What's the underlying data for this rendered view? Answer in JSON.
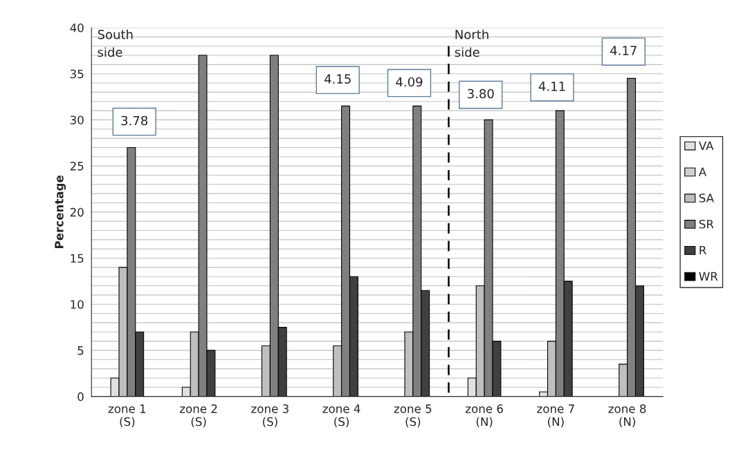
{
  "chart_data": {
    "type": "bar",
    "ylabel": "Percentage",
    "categories": [
      "zone 1\n(S)",
      "zone 2\n(S)",
      "zone 3\n(S)",
      "zone 4\n(S)",
      "zone 5\n(S)",
      "zone 6\n(N)",
      "zone 7\n(N)",
      "zone 8\n(N)"
    ],
    "series": [
      {
        "name": "VA",
        "color": "#e0e0e0",
        "values": [
          2,
          1,
          null,
          null,
          null,
          2,
          0.5,
          null
        ]
      },
      {
        "name": "A",
        "color": "#d0d0d0",
        "values": [
          null,
          null,
          null,
          null,
          null,
          null,
          null,
          null
        ]
      },
      {
        "name": "SA",
        "color": "#bfbfbf",
        "values": [
          14,
          7,
          5.5,
          5.5,
          7,
          12,
          6,
          3.5
        ]
      },
      {
        "name": "SR",
        "color": "#808080",
        "values": [
          27,
          37,
          37,
          31.5,
          31.5,
          30,
          31,
          34.5
        ]
      },
      {
        "name": "R",
        "color": "#404040",
        "values": [
          7,
          5,
          7.5,
          13,
          11.5,
          6,
          12.5,
          12
        ]
      },
      {
        "name": "WR",
        "color": "#000000",
        "values": [
          null,
          null,
          null,
          null,
          null,
          null,
          null,
          null
        ]
      }
    ],
    "ylim": [
      0,
      40
    ],
    "yticks": [
      0,
      5,
      10,
      15,
      20,
      25,
      30,
      35,
      40
    ],
    "grid": "y",
    "legend": "right",
    "annotations": [
      "3.78",
      "4.15",
      "4.09",
      "3.80",
      "4.11",
      "4.17",
      "South\nside",
      "North\nside"
    ]
  }
}
